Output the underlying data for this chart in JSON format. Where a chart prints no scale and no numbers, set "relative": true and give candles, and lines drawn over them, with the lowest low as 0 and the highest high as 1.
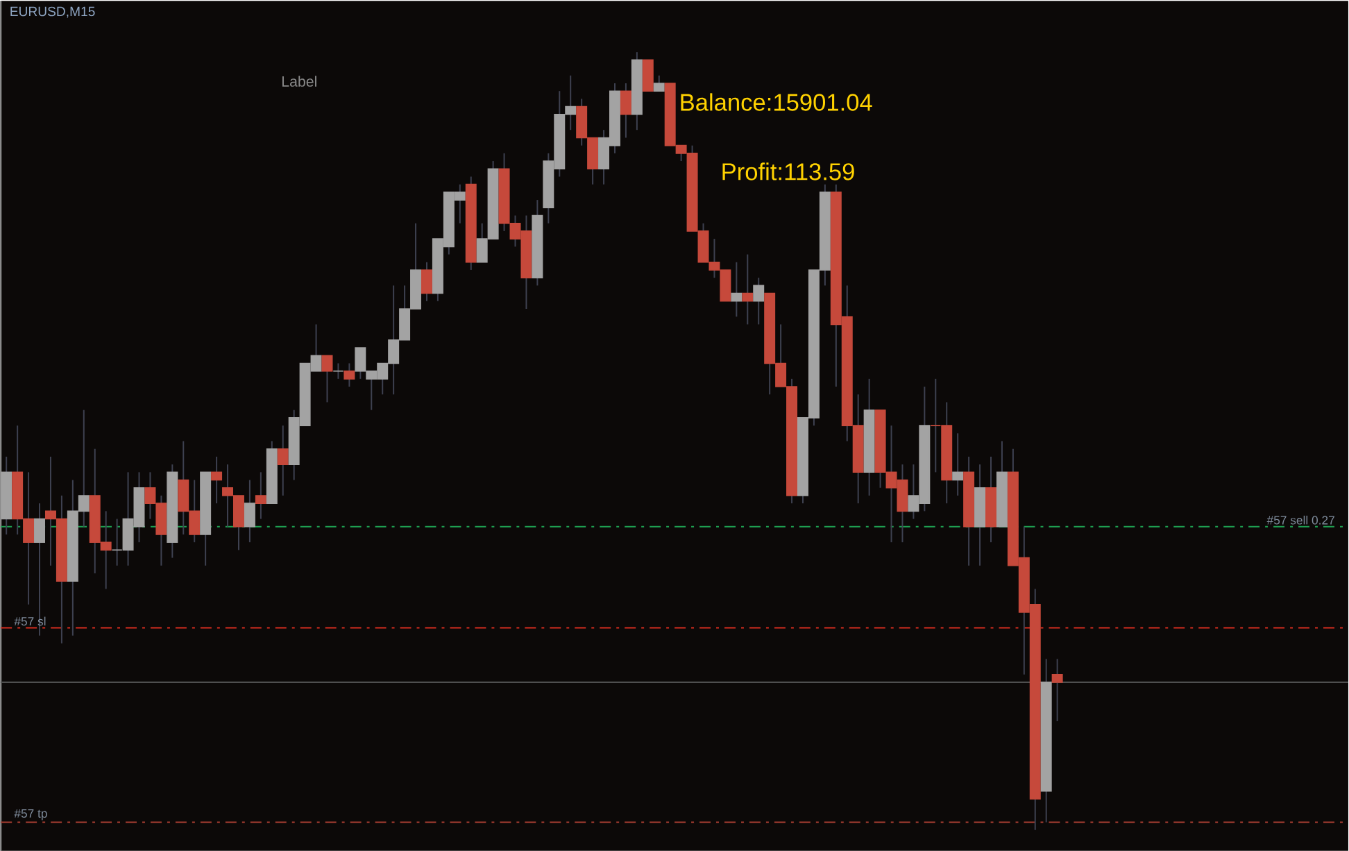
{
  "chart_data": {
    "type": "candlestick",
    "title": "EURUSD,M15",
    "relative": true,
    "annotations": [
      "Label",
      "Balance:15901.04",
      "Profit:113.59"
    ],
    "categories": [
      null,
      null,
      null,
      null,
      null,
      null,
      null,
      null,
      null,
      null,
      null,
      null,
      null,
      null,
      null,
      null,
      null,
      null,
      null,
      null,
      null,
      null,
      null,
      null,
      null,
      null,
      null,
      null,
      null,
      null,
      null,
      null,
      null,
      null,
      null,
      null,
      null,
      null,
      null,
      null,
      null,
      null,
      null,
      null,
      null,
      null,
      null,
      null,
      null,
      null,
      null,
      null,
      null,
      null,
      null,
      null,
      null,
      null,
      null,
      null,
      null,
      null,
      null,
      null,
      null,
      null,
      null,
      null,
      null,
      null,
      null,
      null,
      null,
      null,
      null,
      null,
      null,
      null,
      null,
      null,
      null,
      null,
      null,
      null,
      null,
      null,
      null,
      null,
      null,
      null,
      null,
      null,
      null,
      null,
      null,
      null
    ],
    "ohlc": [
      [
        0.4,
        0.48,
        0.38,
        0.46
      ],
      [
        0.46,
        0.52,
        0.38,
        0.4
      ],
      [
        0.4,
        0.46,
        0.29,
        0.37
      ],
      [
        0.37,
        0.42,
        0.25,
        0.4
      ],
      [
        0.41,
        0.48,
        0.34,
        0.4
      ],
      [
        0.4,
        0.43,
        0.24,
        0.32
      ],
      [
        0.32,
        0.45,
        0.25,
        0.41
      ],
      [
        0.41,
        0.54,
        0.39,
        0.43
      ],
      [
        0.43,
        0.49,
        0.33,
        0.37
      ],
      [
        0.37,
        0.41,
        0.31,
        0.36
      ],
      [
        0.36,
        0.4,
        0.34,
        0.36
      ],
      [
        0.36,
        0.46,
        0.34,
        0.4
      ],
      [
        0.39,
        0.46,
        0.37,
        0.44
      ],
      [
        0.44,
        0.46,
        0.4,
        0.42
      ],
      [
        0.42,
        0.43,
        0.34,
        0.38
      ],
      [
        0.37,
        0.47,
        0.35,
        0.46
      ],
      [
        0.45,
        0.5,
        0.38,
        0.41
      ],
      [
        0.41,
        0.45,
        0.37,
        0.38
      ],
      [
        0.38,
        0.46,
        0.34,
        0.46
      ],
      [
        0.46,
        0.48,
        0.42,
        0.45
      ],
      [
        0.44,
        0.47,
        0.39,
        0.43
      ],
      [
        0.43,
        0.43,
        0.36,
        0.39
      ],
      [
        0.39,
        0.45,
        0.37,
        0.42
      ],
      [
        0.43,
        0.46,
        0.4,
        0.42
      ],
      [
        0.42,
        0.5,
        0.42,
        0.49
      ],
      [
        0.49,
        0.52,
        0.43,
        0.47
      ],
      [
        0.47,
        0.54,
        0.45,
        0.53
      ],
      [
        0.52,
        0.6,
        0.52,
        0.6
      ],
      [
        0.59,
        0.65,
        0.59,
        0.61
      ],
      [
        0.61,
        0.61,
        0.55,
        0.59
      ],
      [
        0.59,
        0.6,
        0.58,
        0.59
      ],
      [
        0.59,
        0.6,
        0.57,
        0.58
      ],
      [
        0.59,
        0.62,
        0.58,
        0.62
      ],
      [
        0.58,
        0.59,
        0.54,
        0.59
      ],
      [
        0.58,
        0.6,
        0.56,
        0.6
      ],
      [
        0.6,
        0.7,
        0.56,
        0.63
      ],
      [
        0.63,
        0.7,
        0.63,
        0.67
      ],
      [
        0.67,
        0.78,
        0.67,
        0.72
      ],
      [
        0.72,
        0.73,
        0.68,
        0.69
      ],
      [
        0.69,
        0.76,
        0.68,
        0.76
      ],
      [
        0.75,
        0.82,
        0.74,
        0.82
      ],
      [
        0.81,
        0.83,
        0.78,
        0.82
      ],
      [
        0.83,
        0.84,
        0.72,
        0.73
      ],
      [
        0.73,
        0.78,
        0.73,
        0.76
      ],
      [
        0.76,
        0.86,
        0.76,
        0.85
      ],
      [
        0.85,
        0.87,
        0.77,
        0.78
      ],
      [
        0.78,
        0.79,
        0.75,
        0.76
      ],
      [
        0.77,
        0.79,
        0.67,
        0.71
      ],
      [
        0.71,
        0.81,
        0.7,
        0.79
      ],
      [
        0.8,
        0.87,
        0.78,
        0.86
      ],
      [
        0.85,
        0.95,
        0.84,
        0.92
      ],
      [
        0.92,
        0.97,
        0.9,
        0.93
      ],
      [
        0.93,
        0.94,
        0.88,
        0.89
      ],
      [
        0.89,
        0.89,
        0.83,
        0.85
      ],
      [
        0.85,
        0.9,
        0.83,
        0.89
      ],
      [
        0.88,
        0.96,
        0.87,
        0.95
      ],
      [
        0.95,
        0.96,
        0.89,
        0.92
      ],
      [
        0.92,
        1.0,
        0.9,
        0.99
      ],
      [
        0.99,
        0.99,
        0.95,
        0.95
      ],
      [
        0.95,
        0.97,
        0.95,
        0.96
      ],
      [
        0.96,
        0.96,
        0.88,
        0.88
      ],
      [
        0.88,
        0.88,
        0.86,
        0.87
      ],
      [
        0.87,
        0.88,
        0.77,
        0.77
      ],
      [
        0.77,
        0.78,
        0.73,
        0.73
      ],
      [
        0.73,
        0.76,
        0.71,
        0.72
      ],
      [
        0.72,
        0.72,
        0.68,
        0.68
      ],
      [
        0.68,
        0.73,
        0.66,
        0.69
      ],
      [
        0.69,
        0.74,
        0.65,
        0.68
      ],
      [
        0.68,
        0.71,
        0.65,
        0.7
      ],
      [
        0.69,
        0.69,
        0.56,
        0.6
      ],
      [
        0.6,
        0.65,
        0.57,
        0.57
      ],
      [
        0.57,
        0.58,
        0.42,
        0.43
      ],
      [
        0.43,
        0.53,
        0.42,
        0.53
      ],
      [
        0.53,
        0.72,
        0.52,
        0.72
      ],
      [
        0.72,
        0.83,
        0.7,
        0.82
      ],
      [
        0.82,
        0.83,
        0.57,
        0.65
      ],
      [
        0.66,
        0.7,
        0.5,
        0.52
      ],
      [
        0.52,
        0.56,
        0.42,
        0.46
      ],
      [
        0.46,
        0.58,
        0.43,
        0.54
      ],
      [
        0.54,
        0.54,
        0.44,
        0.46
      ],
      [
        0.46,
        0.52,
        0.37,
        0.44
      ],
      [
        0.45,
        0.47,
        0.37,
        0.41
      ],
      [
        0.41,
        0.47,
        0.4,
        0.43
      ],
      [
        0.42,
        0.57,
        0.41,
        0.52
      ],
      [
        0.52,
        0.58,
        0.46,
        0.52
      ],
      [
        0.52,
        0.55,
        0.42,
        0.45
      ],
      [
        0.45,
        0.51,
        0.43,
        0.46
      ],
      [
        0.46,
        0.48,
        0.34,
        0.39
      ],
      [
        0.39,
        0.47,
        0.34,
        0.44
      ],
      [
        0.44,
        0.48,
        0.37,
        0.39
      ],
      [
        0.39,
        0.5,
        0.39,
        0.46
      ],
      [
        0.46,
        0.49,
        0.34,
        0.34
      ],
      [
        0.35,
        0.39,
        0.2,
        0.28
      ],
      [
        0.29,
        0.31,
        0.0,
        0.04
      ],
      [
        0.05,
        0.22,
        0.01,
        0.19
      ],
      [
        0.2,
        0.22,
        0.14,
        0.19
      ]
    ],
    "colors": [
      "#a3a3a3",
      "#c6493b",
      "#c6493b",
      "#a3a3a3",
      "#c6493b",
      "#c6493b",
      "#a3a3a3",
      "#a3a3a3",
      "#c6493b",
      "#c6493b",
      "#a3a3a3",
      "#a3a3a3",
      "#a3a3a3",
      "#c6493b",
      "#c6493b",
      "#a3a3a3",
      "#c6493b",
      "#c6493b",
      "#a3a3a3",
      "#c6493b",
      "#c6493b",
      "#c6493b",
      "#a3a3a3",
      "#c6493b",
      "#a3a3a3",
      "#c6493b",
      "#a3a3a3",
      "#a3a3a3",
      "#a3a3a3",
      "#c6493b",
      "#a3a3a3",
      "#c6493b",
      "#a3a3a3",
      "#a3a3a3",
      "#a3a3a3",
      "#a3a3a3",
      "#a3a3a3",
      "#a3a3a3",
      "#c6493b",
      "#a3a3a3",
      "#a3a3a3",
      "#a3a3a3",
      "#c6493b",
      "#a3a3a3",
      "#a3a3a3",
      "#c6493b",
      "#c6493b",
      "#c6493b",
      "#a3a3a3",
      "#a3a3a3",
      "#a3a3a3",
      "#a3a3a3",
      "#c6493b",
      "#c6493b",
      "#a3a3a3",
      "#a3a3a3",
      "#c6493b",
      "#a3a3a3",
      "#c6493b",
      "#a3a3a3",
      "#c6493b",
      "#c6493b",
      "#c6493b",
      "#c6493b",
      "#c6493b",
      "#c6493b",
      "#a3a3a3",
      "#c6493b",
      "#a3a3a3",
      "#c6493b",
      "#c6493b",
      "#c6493b",
      "#a3a3a3",
      "#a3a3a3",
      "#a3a3a3",
      "#c6493b",
      "#c6493b",
      "#c6493b",
      "#a3a3a3",
      "#c6493b",
      "#c6493b",
      "#c6493b",
      "#a3a3a3",
      "#a3a3a3",
      "#c6493b",
      "#c6493b",
      "#a3a3a3",
      "#c6493b",
      "#a3a3a3",
      "#c6493b",
      "#a3a3a3",
      "#c6493b",
      "#c6493b",
      "#c6493b",
      "#a3a3a3",
      "#c6493b"
    ],
    "ref_lines": [
      {
        "axis": "y",
        "value": 0.39,
        "label": "#57 sell 0.27",
        "color": "#1e9e50",
        "line_style": "dashed"
      },
      {
        "axis": "y",
        "value": 0.26,
        "label": "#57 sl",
        "color": "#d42d1e",
        "line_style": "dashed"
      },
      {
        "axis": "y",
        "value": 0.19,
        "color": "#4f4f4f",
        "line_style": "solid"
      },
      {
        "axis": "y",
        "value": 0.01,
        "label": "#57 tp",
        "color": "#9c3a2e",
        "line_style": "dashed"
      }
    ]
  }
}
